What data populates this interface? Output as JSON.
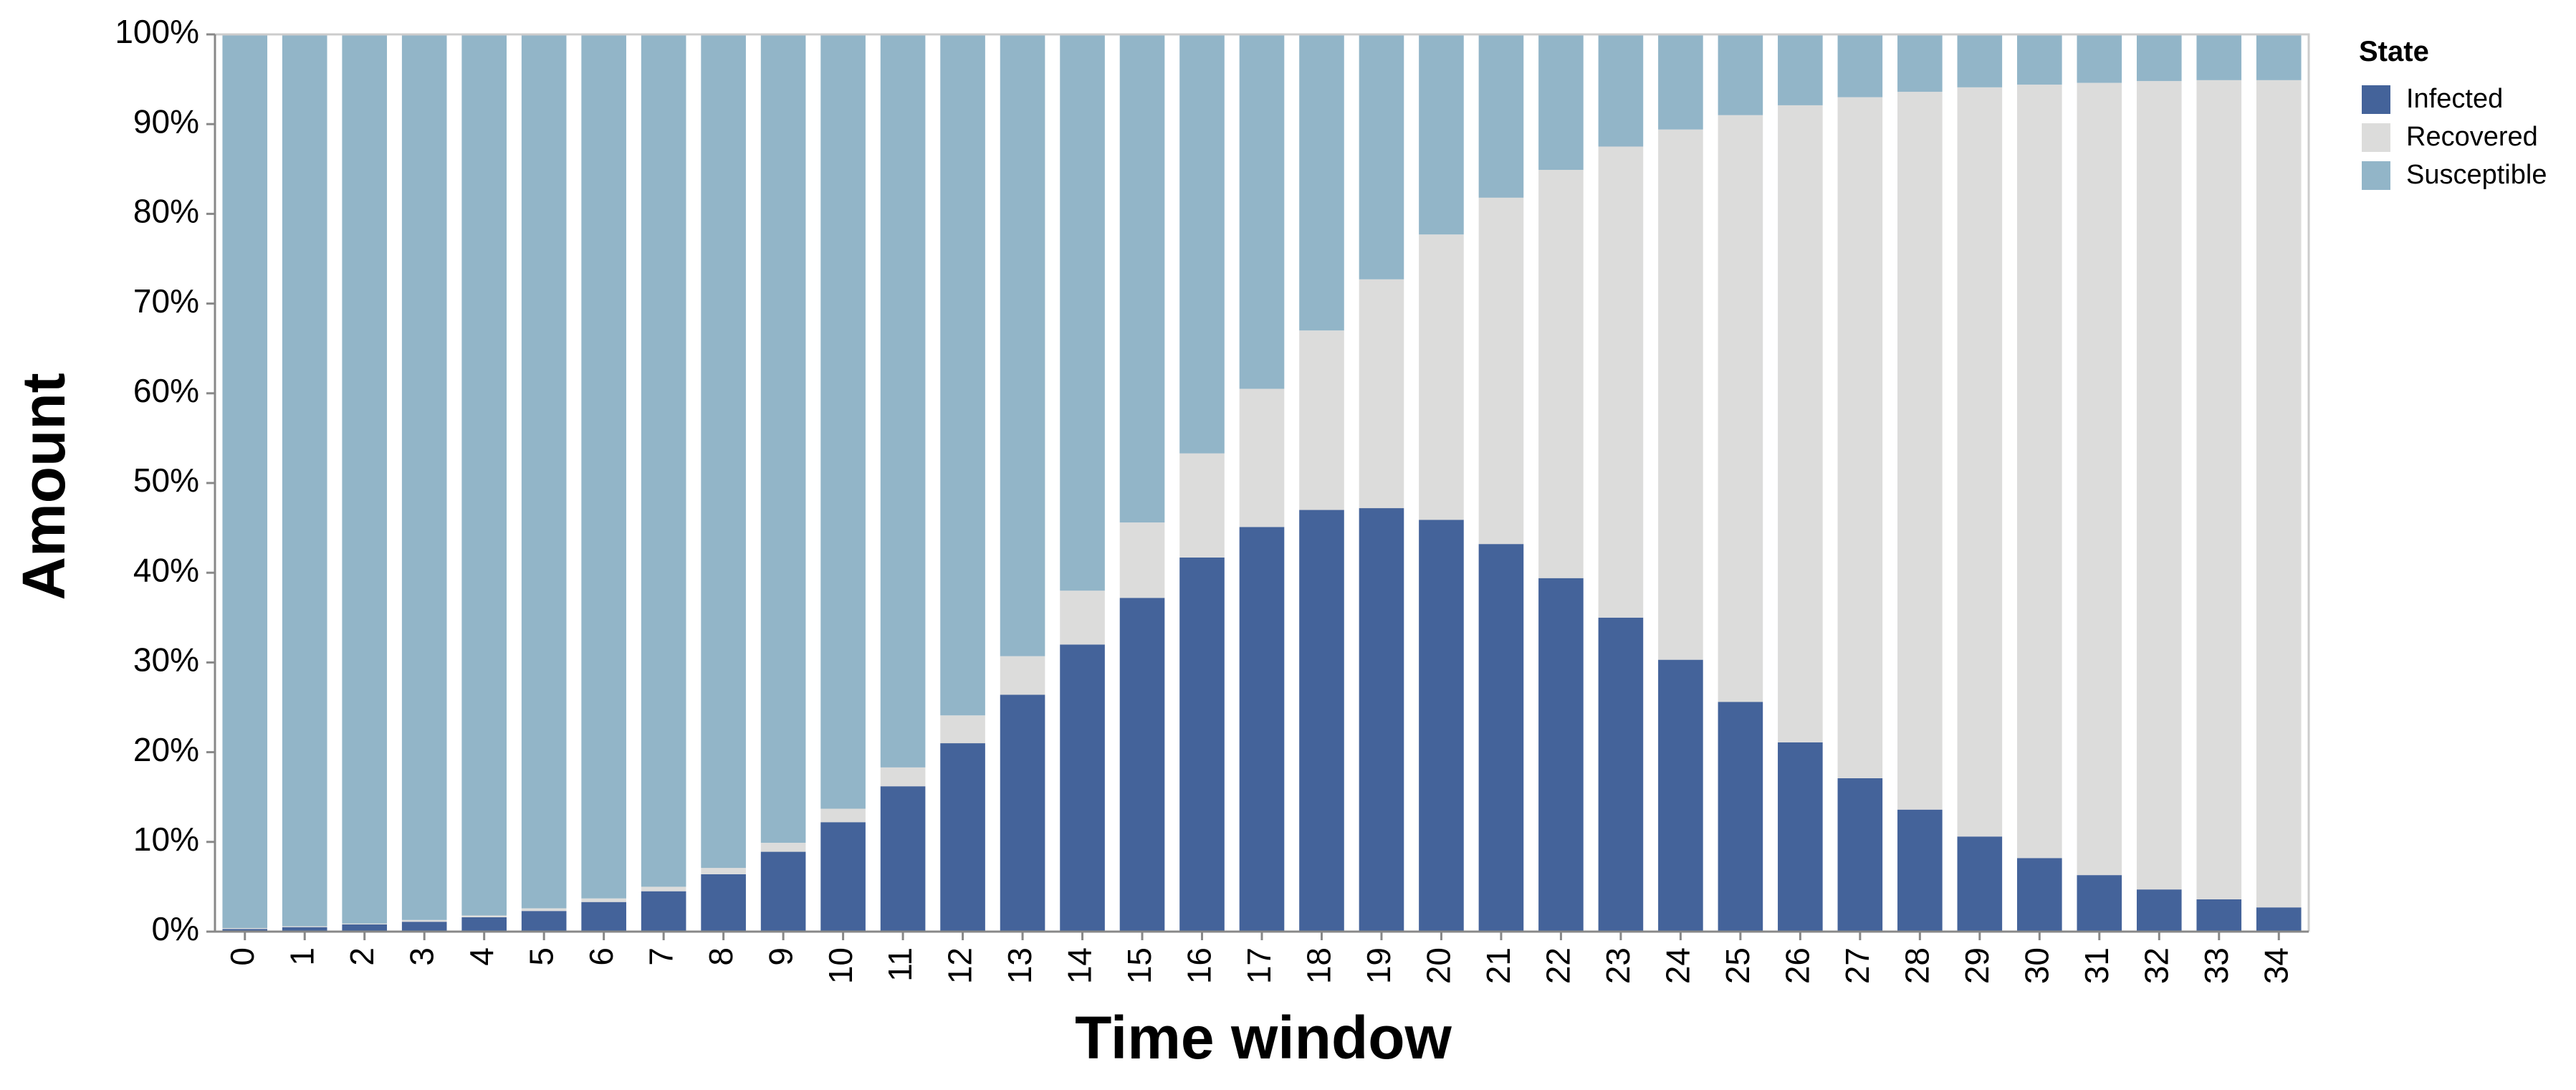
{
  "chart_data": {
    "type": "bar",
    "stacked": true,
    "normalized": true,
    "xlabel": "Time window",
    "ylabel": "Amount",
    "ylim": [
      0,
      1
    ],
    "y_ticks": [
      "0%",
      "10%",
      "20%",
      "30%",
      "40%",
      "50%",
      "60%",
      "70%",
      "80%",
      "90%",
      "100%"
    ],
    "categories": [
      "0",
      "1",
      "2",
      "3",
      "4",
      "5",
      "6",
      "7",
      "8",
      "9",
      "10",
      "11",
      "12",
      "13",
      "14",
      "15",
      "16",
      "17",
      "18",
      "19",
      "20",
      "21",
      "22",
      "23",
      "24",
      "25",
      "26",
      "27",
      "28",
      "29",
      "30",
      "31",
      "32",
      "33",
      "34"
    ],
    "legend": {
      "title": "State",
      "position": "top-right"
    },
    "series": [
      {
        "name": "Infected",
        "color": "#44639a",
        "values": [
          0.003,
          0.005,
          0.008,
          0.011,
          0.016,
          0.023,
          0.033,
          0.045,
          0.064,
          0.089,
          0.122,
          0.162,
          0.21,
          0.264,
          0.32,
          0.372,
          0.417,
          0.451,
          0.47,
          0.472,
          0.459,
          0.432,
          0.394,
          0.35,
          0.303,
          0.256,
          0.211,
          0.171,
          0.136,
          0.106,
          0.082,
          0.063,
          0.047,
          0.036,
          0.027
        ]
      },
      {
        "name": "Recovered",
        "color": "#dcdcdb",
        "values": [
          0.001,
          0.001,
          0.001,
          0.002,
          0.002,
          0.003,
          0.004,
          0.005,
          0.007,
          0.01,
          0.015,
          0.021,
          0.031,
          0.043,
          0.06,
          0.084,
          0.116,
          0.154,
          0.2,
          0.255,
          0.318,
          0.386,
          0.455,
          0.525,
          0.591,
          0.654,
          0.71,
          0.759,
          0.8,
          0.835,
          0.862,
          0.883,
          0.901,
          0.913,
          0.922
        ]
      },
      {
        "name": "Susceptible",
        "color": "#92b5c8",
        "values": [
          0.996,
          0.994,
          0.991,
          0.987,
          0.982,
          0.974,
          0.963,
          0.95,
          0.929,
          0.901,
          0.863,
          0.817,
          0.759,
          0.693,
          0.62,
          0.544,
          0.467,
          0.395,
          0.33,
          0.273,
          0.223,
          0.182,
          0.151,
          0.125,
          0.106,
          0.09,
          0.079,
          0.07,
          0.064,
          0.059,
          0.056,
          0.054,
          0.052,
          0.051,
          0.051
        ]
      }
    ]
  }
}
